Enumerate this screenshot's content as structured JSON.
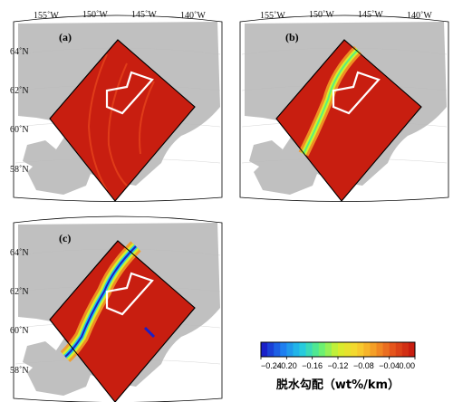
{
  "colors": {
    "land": "#c0c0c0",
    "sea": "#ffffff",
    "field": "#c81e10",
    "outline": "#000000",
    "region": "#ffffff"
  },
  "panels": [
    {
      "id": "a",
      "label": "(a)",
      "lon_labels": [
        "155˚W",
        "150˚W",
        "145˚W",
        "140˚W"
      ],
      "lat_labels": [
        "64˚N",
        "62˚N",
        "60˚N",
        "58˚N"
      ],
      "dehydration_band": "none"
    },
    {
      "id": "b",
      "label": "(b)",
      "lon_labels": [
        "155˚W",
        "150˚W",
        "145˚W",
        "140˚W"
      ],
      "lat_labels": [],
      "dehydration_band": "moderate"
    },
    {
      "id": "c",
      "label": "(c)",
      "lon_labels": [],
      "lat_labels": [
        "64˚N",
        "62˚N",
        "60˚N",
        "58˚N"
      ],
      "dehydration_band": "strong"
    }
  ],
  "colorbar": {
    "title": "脱水勾配（wt%/km）",
    "ticks": [
      "−0.24",
      "−0.20",
      "−0.16",
      "−0.12",
      "−0.08",
      "−0.04",
      "0.00"
    ],
    "min": -0.24,
    "max": 0.0,
    "colormap": [
      "#1a20c8",
      "#1e7cf0",
      "#22c8e6",
      "#5cf07c",
      "#d4f02c",
      "#f8d630",
      "#f49a26",
      "#e4521c",
      "#c81e10"
    ]
  }
}
